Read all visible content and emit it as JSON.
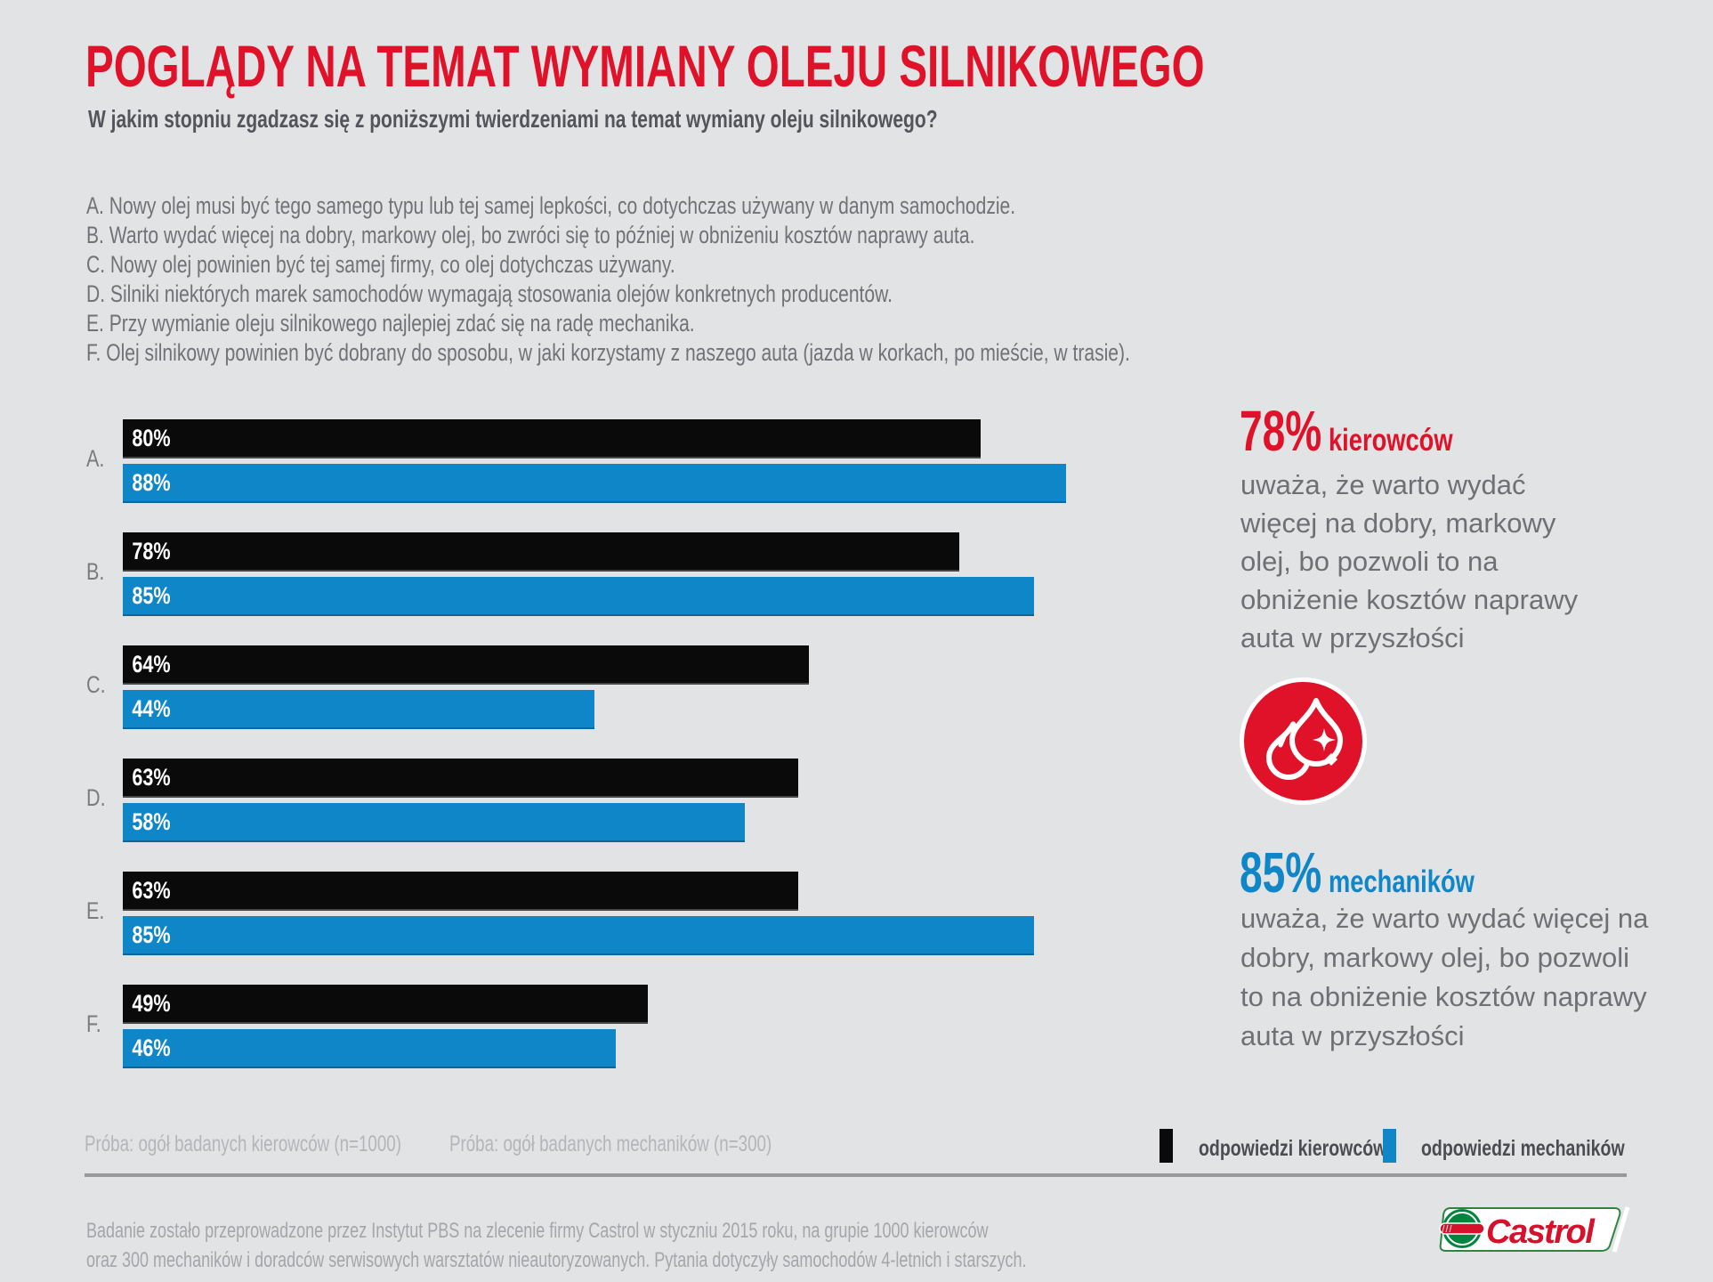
{
  "page": {
    "title": "POGLĄDY NA TEMAT WYMIANY OLEJU SILNIKOWEGO",
    "subtitle": "W jakim stopniu zgadzasz się z poniższymi twierdzeniami na temat wymiany oleju silnikowego?"
  },
  "statements": [
    "A. Nowy olej musi być tego samego typu lub tej samej lepkości, co dotychczas używany w danym samochodzie.",
    "B. Warto wydać więcej na dobry, markowy olej, bo zwróci się to później w obniżeniu kosztów naprawy auta.",
    "C. Nowy olej powinien być tej samej firmy, co olej dotychczas używany.",
    "D. Silniki niektórych marek samochodów wymagają stosowania olejów konkretnych producentów.",
    "E. Przy wymianie oleju silnikowego najlepiej zdać się na radę mechanika.",
    "F. Olej silnikowy powinien być dobrany do sposobu, w jaki korzystamy z naszego auta (jazda w korkach, po mieście, w trasie)."
  ],
  "chart_data": {
    "type": "bar",
    "orientation": "horizontal",
    "unit": "%",
    "categories": [
      "A.",
      "B.",
      "C.",
      "D.",
      "E.",
      "F."
    ],
    "series": [
      {
        "name": "odpowiedzi kierowców",
        "color": "#0a0a0a",
        "values": [
          80,
          78,
          64,
          63,
          63,
          49
        ]
      },
      {
        "name": "odpowiedzi mechaników",
        "color": "#0e86c8",
        "values": [
          88,
          85,
          44,
          58,
          85,
          46
        ]
      }
    ],
    "xlim": [
      0,
      100
    ],
    "value_labels": "inside-left",
    "legend_position": "bottom-right",
    "grid": false
  },
  "highlights": {
    "drivers": {
      "value": "78%",
      "group": "kierowców",
      "color": "#e01229",
      "lines": [
        "uważa, że warto wydać",
        "więcej na dobry, markowy",
        "olej, bo pozwoli to na",
        "obniżenie kosztów naprawy",
        "auta w przyszłości"
      ]
    },
    "mechanics": {
      "value": "85%",
      "group": "mechaników",
      "color": "#0e86c8",
      "lines": [
        "uważa, że warto wydać więcej na",
        "dobry, markowy olej, bo pozwoli",
        "to na obniżenie kosztów naprawy",
        "auta w przyszłości"
      ]
    }
  },
  "icons": {
    "oil_drops": "oil-drops-icon",
    "brand": "castrol-logo"
  },
  "notes": {
    "sample_drivers": "Próba: ogół badanych kierowców (n=1000)",
    "sample_mechanics": "Próba: ogół badanych mechaników (n=300)"
  },
  "legend": [
    {
      "label": "odpowiedzi kierowców",
      "color": "#0a0a0a"
    },
    {
      "label": "odpowiedzi mechaników",
      "color": "#0e86c8"
    }
  ],
  "footer": {
    "line1": "Badanie zostało przeprowadzone przez Instytut PBS na zlecenie firmy Castrol w styczniu 2015 roku, na grupie 1000 kierowców",
    "line2": "oraz 300 mechaników i doradców serwisowych warsztatów nieautoryzowanych. Pytania dotyczyły samochodów 4-letnich i starszych.",
    "brand": "Castrol"
  },
  "colors": {
    "background": "#e2e3e5",
    "accent_red": "#e01229",
    "accent_blue": "#0e86c8",
    "bar_black": "#0a0a0a",
    "castrol_green": "#00843e",
    "castrol_red": "#d5112c"
  }
}
